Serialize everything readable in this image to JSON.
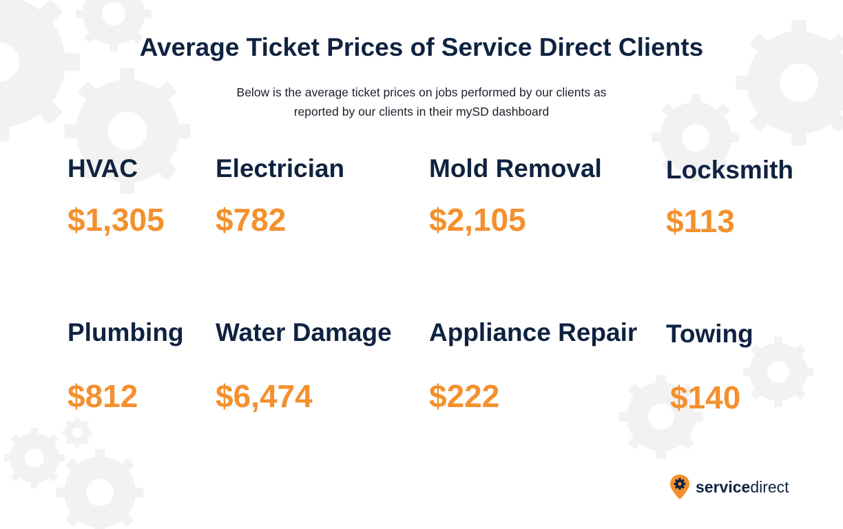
{
  "title": "Average Ticket Prices of Service Direct Clients",
  "subtitle": {
    "line1": "Below is the average ticket prices on jobs performed by our clients as",
    "line2": "reported by our clients in their mySD dashboard"
  },
  "services": [
    {
      "label": "HVAC",
      "price": "$1,305"
    },
    {
      "label": "Electrician",
      "price": "$782"
    },
    {
      "label": "Mold Removal",
      "price": "$2,105"
    },
    {
      "label": "Locksmith",
      "price": "$113"
    },
    {
      "label": "Plumbing",
      "price": "$812"
    },
    {
      "label": "Water Damage",
      "price": "$6,474"
    },
    {
      "label": "Appliance Repair",
      "price": "$222"
    },
    {
      "label": "Towing",
      "price": "$140"
    }
  ],
  "logo": {
    "bold": "service",
    "regular": "direct",
    "icon": "gear-pin-icon"
  },
  "colors": {
    "navy": "#0f2340",
    "orange": "#f4902e",
    "gear": "#f3f3f4"
  }
}
